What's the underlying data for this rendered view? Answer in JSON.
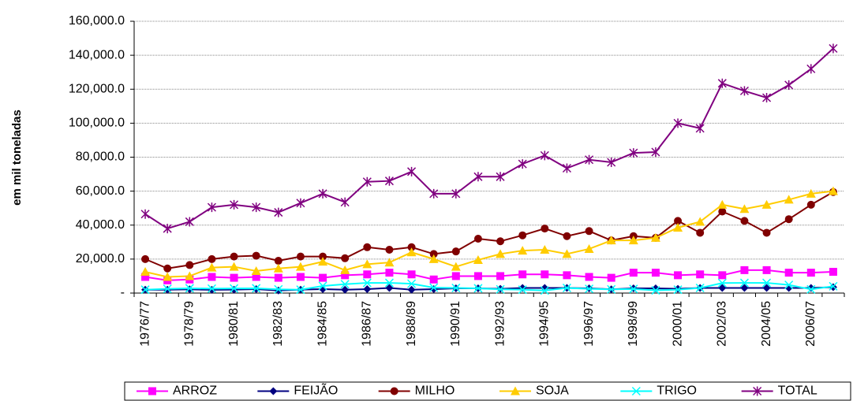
{
  "chart_data": {
    "type": "line",
    "y_label": "em mil toneladas",
    "categories": [
      "1976/77",
      null,
      "1978/79",
      null,
      "1980/81",
      null,
      "1982/83",
      null,
      "1984/85",
      null,
      "1986/87",
      null,
      "1988/89",
      null,
      "1990/91",
      null,
      "1992/93",
      null,
      "1994/95",
      null,
      "1996/97",
      null,
      "1998/99",
      null,
      "2000/01",
      null,
      "2002/03",
      null,
      "2004/05",
      null,
      "2006/07",
      null
    ],
    "ylim": [
      0,
      160000
    ],
    "yticks": [
      {
        "value": 0,
        "label": "-"
      },
      {
        "value": 20000,
        "label": "20,000.0"
      },
      {
        "value": 40000,
        "label": "40,000.0"
      },
      {
        "value": 60000,
        "label": "60,000.0"
      },
      {
        "value": 80000,
        "label": "80,000.0"
      },
      {
        "value": 100000,
        "label": "100,000.0"
      },
      {
        "value": 120000,
        "label": "120,000.0"
      },
      {
        "value": 140000,
        "label": "140,000.0"
      },
      {
        "value": 160000,
        "label": "160,000.0"
      }
    ],
    "grid": true,
    "legend": "bottom",
    "series": [
      {
        "name": "ARROZ",
        "color": "#ff00ff",
        "marker": "square",
        "values": [
          9500,
          7500,
          8000,
          9500,
          9000,
          9500,
          9000,
          9500,
          9000,
          10500,
          11000,
          12000,
          11000,
          8000,
          10000,
          10000,
          10000,
          11000,
          11000,
          10500,
          9500,
          9000,
          12000,
          12000,
          10500,
          11000,
          10500,
          13500,
          13500,
          12000,
          12000,
          12500
        ]
      },
      {
        "name": "FEIJÃO",
        "color": "#000080",
        "marker": "diamond",
        "values": [
          2000,
          2000,
          2200,
          1900,
          2000,
          2300,
          1500,
          2000,
          2300,
          2000,
          2300,
          3000,
          2000,
          2300,
          2800,
          2800,
          2500,
          3000,
          3000,
          3000,
          2800,
          2200,
          2800,
          2800,
          2500,
          3000,
          3000,
          3000,
          3000,
          3000,
          3000,
          3500
        ]
      },
      {
        "name": "MILHO",
        "color": "#800000",
        "marker": "circle",
        "values": [
          20000,
          14500,
          16500,
          20000,
          21500,
          22000,
          19000,
          21500,
          21500,
          20500,
          27000,
          25500,
          27000,
          23000,
          24500,
          32000,
          30500,
          34000,
          38000,
          33500,
          36500,
          31000,
          33500,
          32500,
          42500,
          35500,
          48000,
          42500,
          35500,
          43500,
          52000,
          59500
        ]
      },
      {
        "name": "SOJA",
        "color": "#ffcc00",
        "marker": "triangle",
        "values": [
          12500,
          9500,
          10000,
          15000,
          15500,
          13000,
          14500,
          15500,
          18500,
          13500,
          17000,
          18000,
          24000,
          20000,
          15500,
          19500,
          23000,
          25000,
          25500,
          23000,
          26000,
          31000,
          31000,
          32500,
          38500,
          42000,
          52000,
          49500,
          52000,
          55000,
          58500,
          60000
        ]
      },
      {
        "name": "TRIGO",
        "color": "#00ffff",
        "marker": "x",
        "values": [
          2000,
          2500,
          2800,
          2600,
          2700,
          2800,
          2200,
          2000,
          4200,
          5200,
          6000,
          6000,
          5500,
          3200,
          3000,
          2800,
          2200,
          2000,
          1500,
          3000,
          2500,
          2200,
          2400,
          1600,
          2000,
          3000,
          5900,
          6000,
          6000,
          4800,
          2200,
          4000
        ]
      },
      {
        "name": "TOTAL",
        "color": "#800080",
        "marker": "star",
        "values": [
          46500,
          38000,
          42000,
          50500,
          52000,
          50500,
          47500,
          53000,
          58500,
          53500,
          65500,
          66000,
          71500,
          58500,
          58500,
          68500,
          68500,
          76000,
          81000,
          73500,
          78500,
          77000,
          82500,
          83000,
          100000,
          97000,
          123500,
          119000,
          115000,
          122500,
          132000,
          144000
        ]
      }
    ]
  }
}
